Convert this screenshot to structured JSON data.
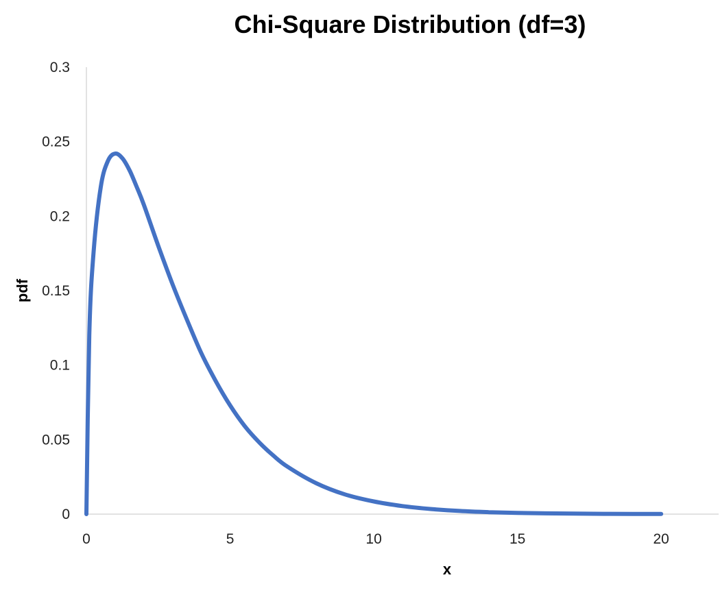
{
  "chart_data": {
    "type": "line",
    "title": "Chi-Square Distribution (df=3)",
    "xlabel": "x",
    "ylabel": "pdf",
    "xlim": [
      0,
      22
    ],
    "ylim": [
      0,
      0.3
    ],
    "xticks": [
      "0",
      "5",
      "10",
      "15",
      "20"
    ],
    "yticks": [
      "0",
      "0.05",
      "0.1",
      "0.15",
      "0.2",
      "0.25",
      "0.3"
    ],
    "grid": false,
    "legend": "none",
    "series": [
      {
        "color": "#4472C4",
        "x": [
          0,
          0.1,
          0.25,
          0.5,
          0.75,
          1,
          1.25,
          1.5,
          1.75,
          2,
          2.5,
          3,
          3.5,
          4,
          4.5,
          5,
          5.5,
          6,
          6.5,
          7,
          8,
          9,
          10,
          11,
          12,
          13,
          14,
          15,
          16,
          17,
          18,
          19,
          20
        ],
        "values": [
          0,
          0.12,
          0.176,
          0.2197,
          0.2371,
          0.242,
          0.2389,
          0.2308,
          0.2197,
          0.2076,
          0.1801,
          0.1542,
          0.1304,
          0.108,
          0.0893,
          0.073,
          0.0593,
          0.0484,
          0.0394,
          0.0318,
          0.0207,
          0.0132,
          0.0085,
          0.0054,
          0.0034,
          0.0021,
          0.0013,
          0.0008,
          0.0005,
          0.0003,
          0.0002,
          0.0001,
          0.0001
        ]
      }
    ]
  }
}
